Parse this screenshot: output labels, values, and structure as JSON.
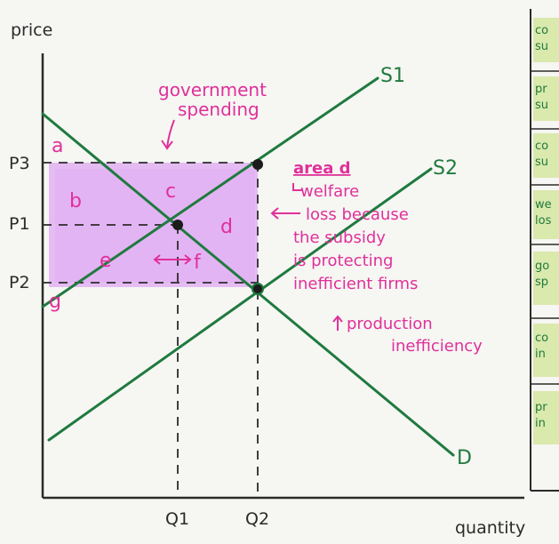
{
  "axes": {
    "y_label": "price",
    "x_label": "quantity"
  },
  "price_levels": [
    "P3",
    "P1",
    "P2"
  ],
  "quantity_levels": [
    "Q1",
    "Q2"
  ],
  "curves": {
    "s1": "S1",
    "s2": "S2",
    "d": "D"
  },
  "areas": [
    "a",
    "b",
    "c",
    "d",
    "e",
    "f",
    "g"
  ],
  "annotations": {
    "gov_line1": "government",
    "gov_line2": "spending",
    "area_d_title": "area d",
    "welfare_lines": [
      "welfare",
      "loss because",
      "the subsidy",
      "is protecting",
      "inefficient firms"
    ],
    "production_lines": [
      "production",
      "inefficiency"
    ]
  },
  "sidebar_fragments": [
    "co",
    "su",
    "pr",
    "su",
    "co",
    "su",
    "we",
    "los",
    "go",
    "sp",
    "co",
    "in",
    "pr",
    "in"
  ],
  "colors": {
    "curve": "#1f7a3e",
    "annotation": "#e0309a",
    "shading": "#d58cf0",
    "pencil": "#2b2b2b",
    "highlight": "#b8d957"
  }
}
